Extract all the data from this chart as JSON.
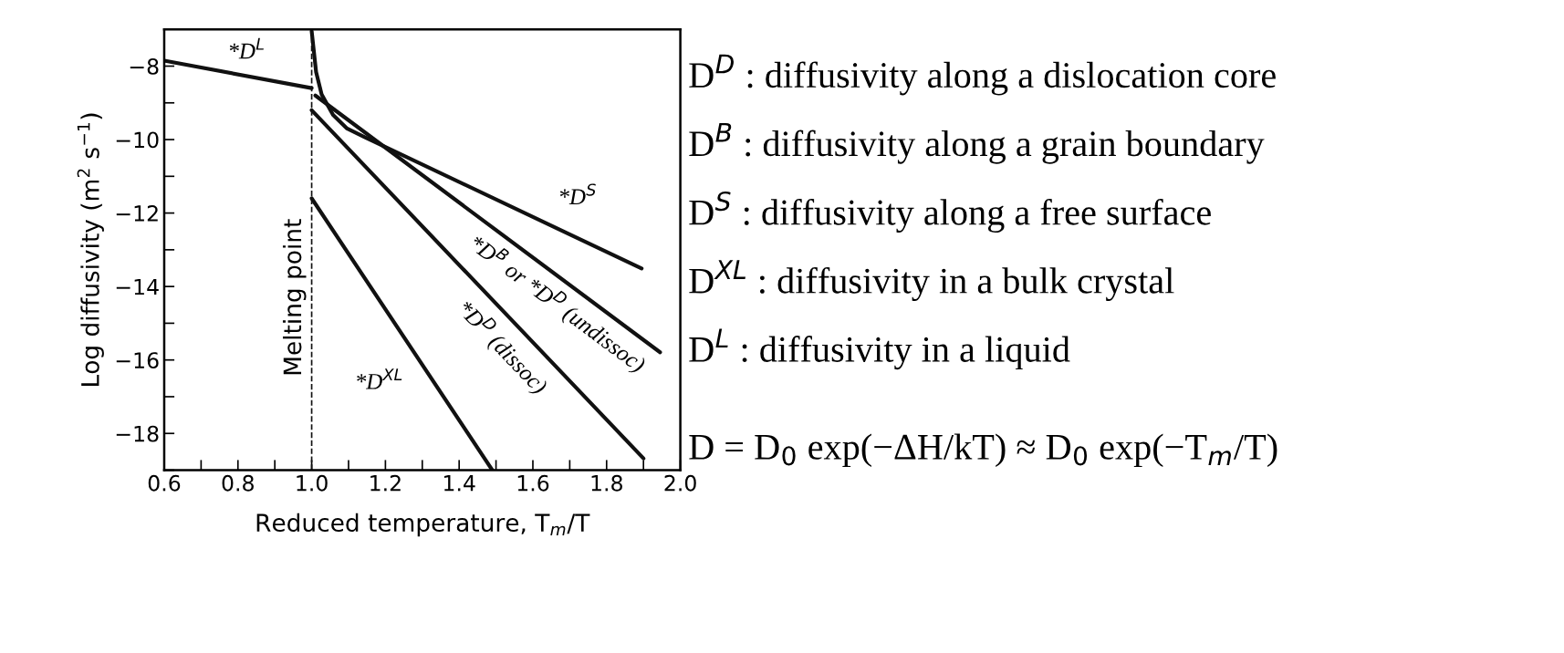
{
  "chart_data": {
    "type": "line",
    "xlabel": "Reduced temperature, T$_{m}$/T",
    "ylabel": "Log diffusivity (m$^{2}$ s$^{−1}$)",
    "xlim": [
      0.6,
      2.0
    ],
    "ylim": [
      -19,
      -7
    ],
    "xticks": [
      0.6,
      {
        "value": 0.7,
        "label": null
      },
      0.8,
      {
        "value": 0.9,
        "label": null
      },
      {
        "value": 1.0,
        "label": "1.0"
      },
      {
        "value": 1.1,
        "label": null
      },
      1.2,
      {
        "value": 1.3,
        "label": null
      },
      1.4,
      {
        "value": 1.5,
        "label": null
      },
      1.6,
      {
        "value": 1.7,
        "label": null
      },
      1.8,
      {
        "value": 1.9,
        "label": null
      },
      {
        "value": 2.0,
        "label": "2.0"
      }
    ],
    "yticks": [
      {
        "value": -19,
        "label": null
      },
      {
        "value": -18,
        "label": "−18"
      },
      {
        "value": -17,
        "label": null
      },
      {
        "value": -16,
        "label": "−16"
      },
      {
        "value": -15,
        "label": null
      },
      {
        "value": -14,
        "label": "−14"
      },
      {
        "value": -13,
        "label": null
      },
      {
        "value": -12,
        "label": "−12"
      },
      {
        "value": -11,
        "label": null
      },
      {
        "value": -10,
        "label": "−10"
      },
      {
        "value": -9,
        "label": null
      },
      {
        "value": -8,
        "label": "−8"
      }
    ],
    "grid": false,
    "legend": false,
    "marker": "none",
    "line_style": "solid",
    "series": [
      {
        "name": "*D$^{L}$",
        "color": "#111111",
        "x": [
          0.6,
          1.0
        ],
        "values": [
          -7.85,
          -8.6
        ]
      },
      {
        "name": "*D$^{S}$",
        "color": "#111111",
        "x": [
          1.0,
          1.012,
          1.027,
          1.058,
          1.096,
          1.145,
          1.895
        ],
        "values": [
          -7.05,
          -8.16,
          -8.77,
          -9.33,
          -9.7,
          -9.94,
          -13.51
        ]
      },
      {
        "name": "*D$^{B}$ or *D$^{D}$ (undissoc)",
        "color": "#111111",
        "x": [
          1.01,
          1.945
        ],
        "values": [
          -8.8,
          -15.79
        ]
      },
      {
        "name": "*D$^{D}$ (dissoc)",
        "color": "#111111",
        "x": [
          1.0,
          1.9
        ],
        "values": [
          -9.2,
          -18.68
        ]
      },
      {
        "name": "*D$^{XL}$",
        "color": "#111111",
        "x": [
          1.0,
          1.49
        ],
        "values": [
          -11.6,
          -19.0
        ]
      }
    ],
    "ref_lines": [
      {
        "axis": "x",
        "value": 1.0,
        "label": "Melting point",
        "color": "#111111",
        "line_style": "dashed"
      }
    ],
    "annotations": [
      "D$^{D}$ : diffusivity along a dislocation core",
      "D$^{B}$ : diffusivity along a grain boundary",
      "D$^{S}$ : diffusivity along a free surface",
      "D$^{XL}$ : diffusivity in a bulk crystal",
      "D$^{L}$ : diffusivity in a liquid",
      "D = D$_{0}$ exp(−ΔH/kT) ≈ D$_{0}$ exp(−T$_{m}$/T)"
    ]
  }
}
